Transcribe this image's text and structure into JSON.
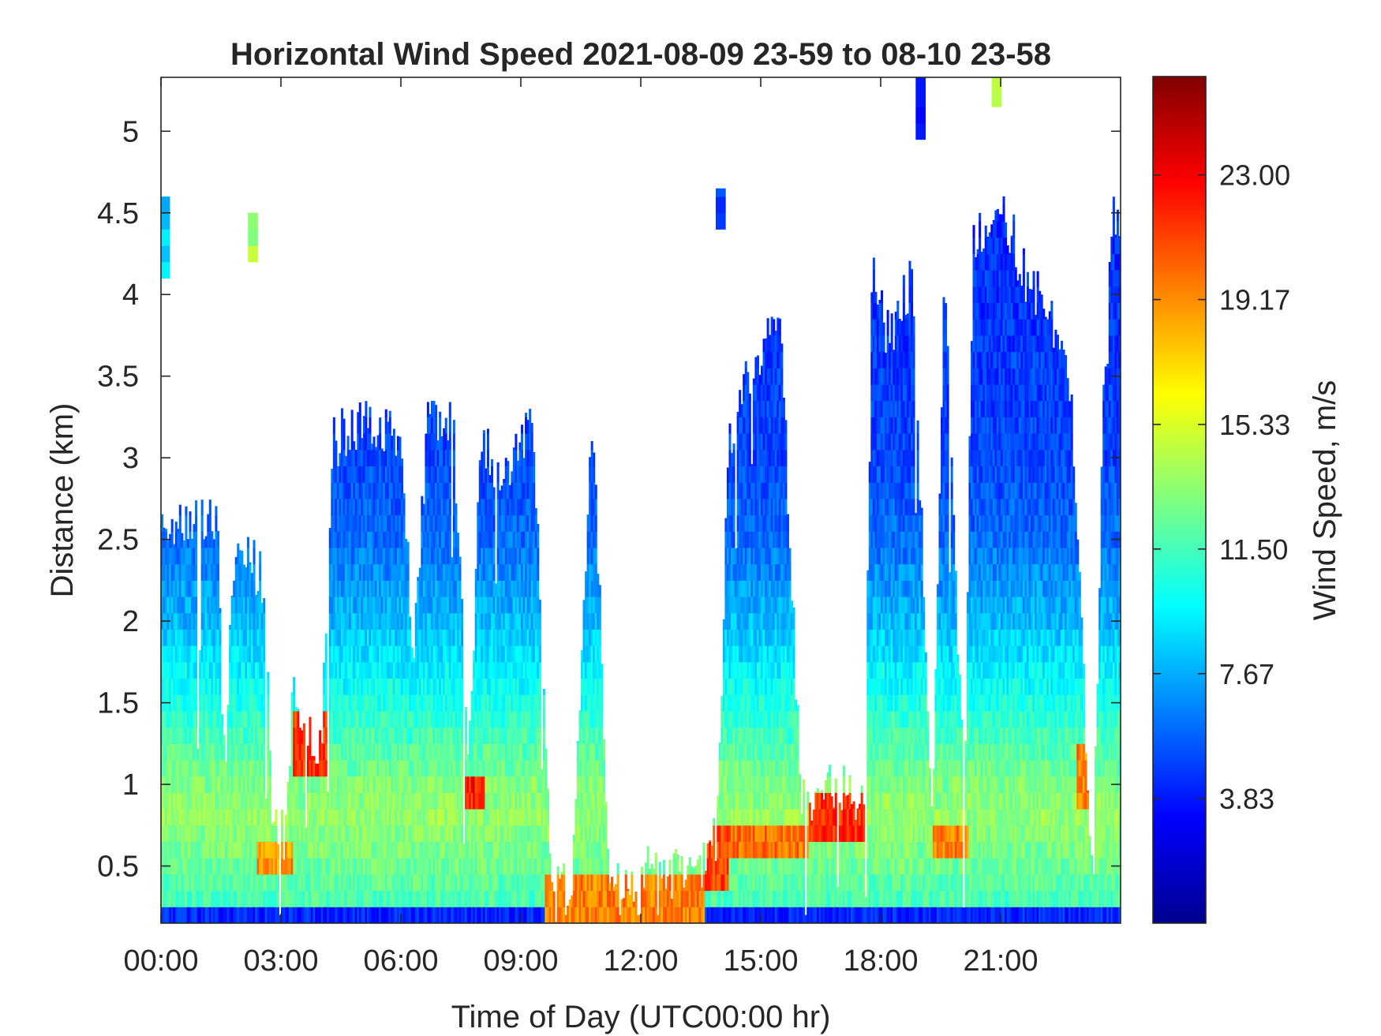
{
  "chart_data": {
    "type": "heatmap",
    "title": "Horizontal Wind Speed 2021-08-09 23-59 to 08-10 23-58",
    "xlabel": "Time of Day (UTC00:00 hr)",
    "ylabel": "Distance (km)",
    "colorbar_label": "Wind Speed, m/s",
    "x_unit": "hours",
    "xlim": [
      0,
      24
    ],
    "ylim": [
      0.15,
      5.33
    ],
    "x_ticks": [
      {
        "value": 0,
        "label": "00:00"
      },
      {
        "value": 3,
        "label": "03:00"
      },
      {
        "value": 6,
        "label": "06:00"
      },
      {
        "value": 9,
        "label": "09:00"
      },
      {
        "value": 12,
        "label": "12:00"
      },
      {
        "value": 15,
        "label": "15:00"
      },
      {
        "value": 18,
        "label": "18:00"
      },
      {
        "value": 21,
        "label": "21:00"
      }
    ],
    "y_ticks": [
      {
        "value": 0.5,
        "label": "0.5"
      },
      {
        "value": 1.0,
        "label": "1"
      },
      {
        "value": 1.5,
        "label": "1.5"
      },
      {
        "value": 2.0,
        "label": "2"
      },
      {
        "value": 2.5,
        "label": "2.5"
      },
      {
        "value": 3.0,
        "label": "3"
      },
      {
        "value": 3.5,
        "label": "3.5"
      },
      {
        "value": 4.0,
        "label": "4"
      },
      {
        "value": 4.5,
        "label": "4.5"
      },
      {
        "value": 5.0,
        "label": "5"
      }
    ],
    "colorbar": {
      "colormap": "jet",
      "range": [
        0,
        26
      ],
      "ticks": [
        {
          "value": 3.83,
          "label": "3.83"
        },
        {
          "value": 7.67,
          "label": "7.67"
        },
        {
          "value": 11.5,
          "label": "11.50"
        },
        {
          "value": 15.33,
          "label": "15.33"
        },
        {
          "value": 19.17,
          "label": "19.17"
        },
        {
          "value": 23.0,
          "label": "23.00"
        }
      ]
    },
    "data_top_km": [
      [
        0.0,
        2.6
      ],
      [
        0.5,
        2.6
      ],
      [
        1.0,
        2.6
      ],
      [
        1.4,
        2.6
      ],
      [
        1.6,
        1.0
      ],
      [
        1.8,
        2.4
      ],
      [
        2.6,
        2.3
      ],
      [
        2.75,
        0.8
      ],
      [
        3.1,
        0.7
      ],
      [
        3.3,
        1.6
      ],
      [
        3.6,
        1.4
      ],
      [
        4.0,
        1.2
      ],
      [
        4.3,
        3.1
      ],
      [
        5.0,
        3.2
      ],
      [
        6.0,
        3.1
      ],
      [
        6.3,
        1.8
      ],
      [
        6.7,
        3.3
      ],
      [
        7.3,
        3.2
      ],
      [
        7.7,
        1.2
      ],
      [
        8.0,
        3.1
      ],
      [
        8.6,
        2.9
      ],
      [
        9.3,
        3.3
      ],
      [
        9.6,
        1.4
      ],
      [
        9.8,
        0.3
      ],
      [
        10.3,
        0.45
      ],
      [
        10.8,
        3.3
      ],
      [
        11.2,
        0.45
      ],
      [
        13.5,
        0.45
      ],
      [
        13.9,
        0.7
      ],
      [
        14.2,
        3.1
      ],
      [
        14.8,
        3.6
      ],
      [
        15.5,
        3.8
      ],
      [
        16.0,
        0.95
      ],
      [
        17.6,
        0.95
      ],
      [
        17.8,
        4.3
      ],
      [
        18.2,
        3.7
      ],
      [
        18.8,
        4.1
      ],
      [
        19.3,
        0.7
      ],
      [
        19.6,
        4.1
      ],
      [
        20.1,
        0.8
      ],
      [
        20.3,
        4.3
      ],
      [
        21.0,
        4.6
      ],
      [
        21.5,
        4.2
      ],
      [
        22.2,
        3.9
      ],
      [
        22.8,
        3.3
      ],
      [
        23.3,
        0.3
      ],
      [
        23.6,
        3.6
      ],
      [
        23.8,
        4.5
      ],
      [
        24.0,
        4.5
      ]
    ],
    "wind_speed_by_altitude": [
      {
        "height_km": 0.25,
        "speed_ms": 11.5
      },
      {
        "height_km": 0.5,
        "speed_ms": 12.5
      },
      {
        "height_km": 0.8,
        "speed_ms": 13.5
      },
      {
        "height_km": 1.0,
        "speed_ms": 13.0
      },
      {
        "height_km": 1.5,
        "speed_ms": 10.5
      },
      {
        "height_km": 2.0,
        "speed_ms": 8.0
      },
      {
        "height_km": 2.5,
        "speed_ms": 6.0
      },
      {
        "height_km": 3.0,
        "speed_ms": 5.0
      },
      {
        "height_km": 4.0,
        "speed_ms": 4.5
      },
      {
        "height_km": 5.0,
        "speed_ms": 4.2
      }
    ],
    "jet_segments": [
      {
        "t0": 9.6,
        "t1": 13.6,
        "h0": 0.15,
        "h1": 0.45,
        "speed_ms": 19.5
      },
      {
        "t0": 13.6,
        "t1": 14.2,
        "h0": 0.35,
        "h1": 0.7,
        "speed_ms": 21.0
      },
      {
        "t0": 14.2,
        "t1": 16.2,
        "h0": 0.55,
        "h1": 0.75,
        "speed_ms": 20.0
      },
      {
        "t0": 16.2,
        "t1": 17.6,
        "h0": 0.65,
        "h1": 0.9,
        "speed_ms": 21.5
      },
      {
        "t0": 3.3,
        "t1": 4.2,
        "h0": 1.05,
        "h1": 1.45,
        "speed_ms": 21.5
      },
      {
        "t0": 2.4,
        "t1": 3.3,
        "h0": 0.4,
        "h1": 0.65,
        "speed_ms": 19.0
      },
      {
        "t0": 7.6,
        "t1": 8.1,
        "h0": 0.8,
        "h1": 1.0,
        "speed_ms": 22.0
      },
      {
        "t0": 19.3,
        "t1": 20.2,
        "h0": 0.55,
        "h1": 0.75,
        "speed_ms": 19.5
      },
      {
        "t0": 22.9,
        "t1": 23.2,
        "h0": 0.85,
        "h1": 1.2,
        "speed_ms": 19.5
      }
    ],
    "isolated_patches": [
      {
        "t": 0.1,
        "h0": 4.1,
        "h1": 4.6,
        "speed_ms": 8.5
      },
      {
        "t": 2.3,
        "h0": 4.2,
        "h1": 4.5,
        "speed_ms": 14.0
      },
      {
        "t": 14.0,
        "h0": 4.4,
        "h1": 4.65,
        "speed_ms": 4.5
      },
      {
        "t": 19.0,
        "h0": 4.95,
        "h1": 5.33,
        "speed_ms": 4.0
      },
      {
        "t": 20.9,
        "h0": 5.15,
        "h1": 5.33,
        "speed_ms": 14.5
      }
    ]
  }
}
